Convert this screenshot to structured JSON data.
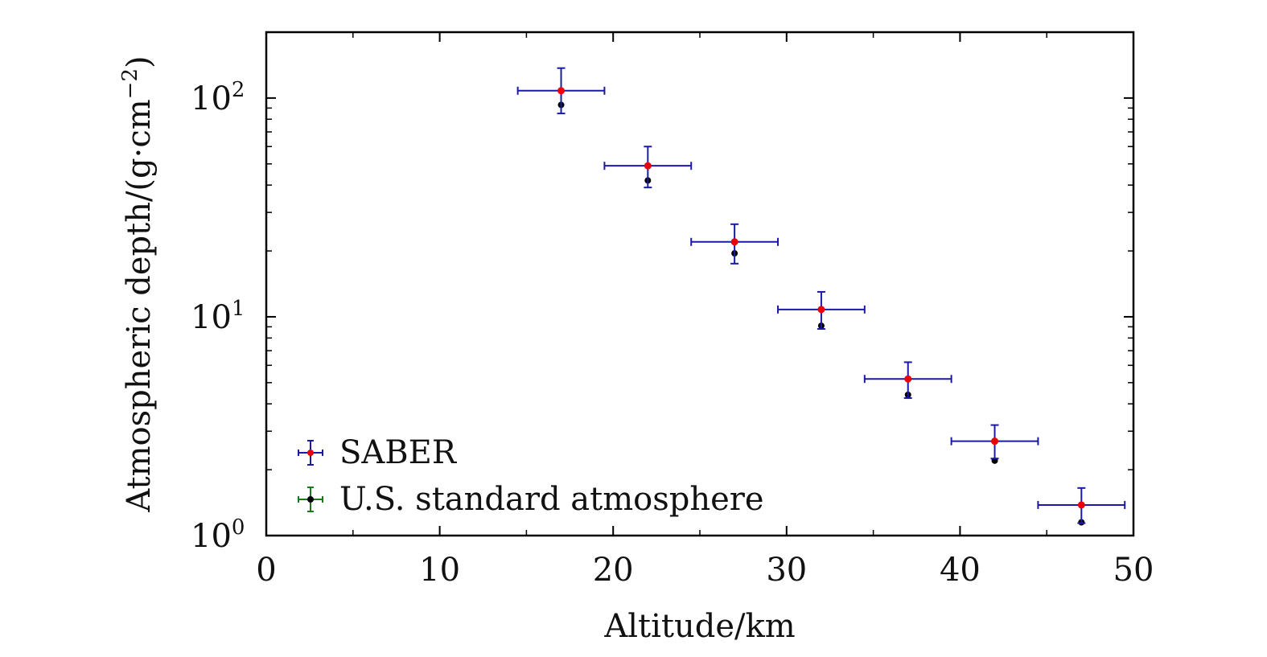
{
  "chart_data": {
    "type": "scatter",
    "title": "",
    "xlabel": "Altitude/km",
    "ylabel": "Atmospheric depth/(g·cm",
    "ylabel_exp": "−2",
    "ylabel_close": ")",
    "xlim": [
      0,
      50
    ],
    "ylim": [
      1,
      200
    ],
    "yscale": "log",
    "xticks": [
      0,
      10,
      20,
      30,
      40,
      50
    ],
    "xtick_labels": [
      "0",
      "10",
      "20",
      "30",
      "40",
      "50"
    ],
    "yticks": [
      1,
      10,
      100
    ],
    "ytick_labels": [
      {
        "base": "10",
        "exp": "0"
      },
      {
        "base": "10",
        "exp": "1"
      },
      {
        "base": "10",
        "exp": "2"
      }
    ],
    "grid": false,
    "legend_position": "bottom-left",
    "series": [
      {
        "name": "SABER",
        "marker_color": "#e8000b",
        "errorbar_color": "#1a1aa6",
        "x": [
          17,
          22,
          27,
          32,
          37,
          42,
          47
        ],
        "y": [
          108,
          49,
          22,
          10.8,
          5.2,
          2.7,
          1.38
        ],
        "xerr": [
          2.5,
          2.5,
          2.5,
          2.5,
          2.5,
          2.5,
          2.5
        ],
        "yerr_low": [
          85,
          39,
          17.5,
          8.8,
          4.25,
          2.25,
          1.14
        ],
        "yerr_high": [
          137,
          60,
          26.5,
          13,
          6.2,
          3.2,
          1.65
        ]
      },
      {
        "name": "U.S. standard atmosphere",
        "marker_color": "#000000",
        "errorbar_color": "#1a7a1a",
        "x": [
          17,
          22,
          27,
          32,
          37,
          42,
          47
        ],
        "y": [
          93,
          42,
          19.5,
          9.1,
          4.4,
          2.2,
          1.15
        ]
      }
    ]
  }
}
